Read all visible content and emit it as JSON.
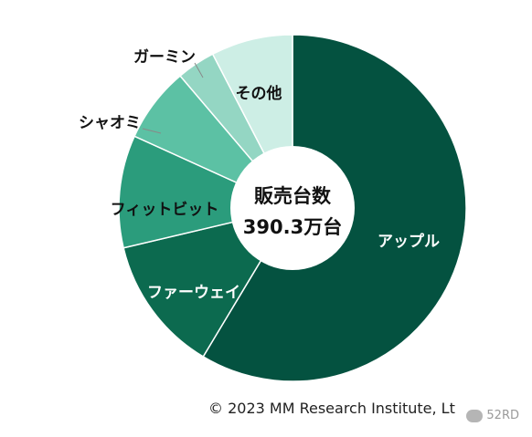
{
  "chart_data": {
    "type": "pie",
    "donut": true,
    "center_label": "販売台数",
    "center_value": "390.3万台",
    "slices": [
      {
        "label": "アップル",
        "value": 58.6,
        "color": "#045240",
        "label_color": "#ffffff"
      },
      {
        "label": "ファーウェイ",
        "value": 12.7,
        "color": "#0c6a4f",
        "label_color": "#ffffff"
      },
      {
        "label": "フィットビット",
        "value": 10.5,
        "color": "#2b9c7c",
        "label_color": "#111111"
      },
      {
        "label": "シャオミ",
        "value": 7.0,
        "color": "#5cc1a4",
        "label_color": "#111111"
      },
      {
        "label": "ガーミン",
        "value": 3.6,
        "color": "#94d6c3",
        "label_color": "#111111"
      },
      {
        "label": "その他",
        "value": 7.6,
        "color": "#cdeee5",
        "label_color": "#111111"
      }
    ]
  },
  "footer": {
    "copyright": "© 2023 MM Research Institute, Lt",
    "watermark": "52RD"
  }
}
